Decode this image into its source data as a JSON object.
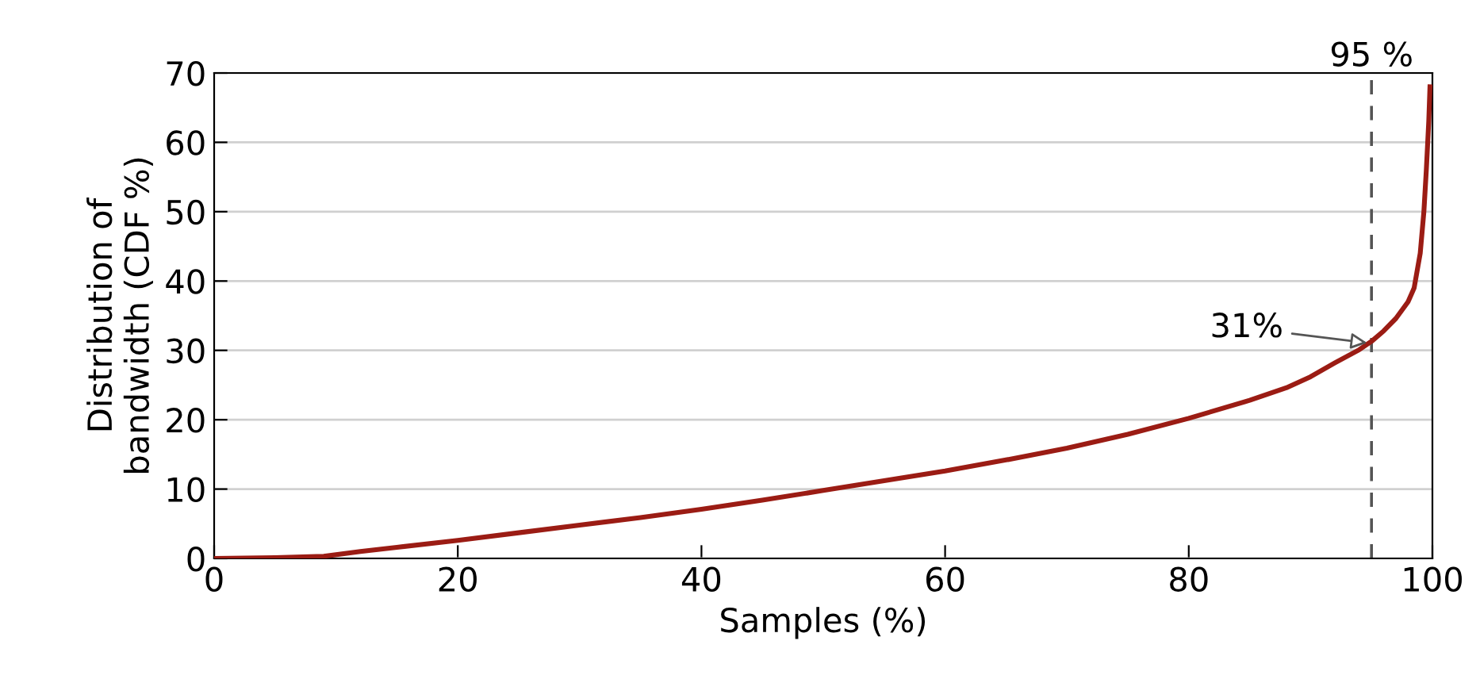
{
  "chart_data": {
    "type": "line",
    "xlabel": "Samples (%)",
    "ylabel": "Distribution of\nbandwidth (CDF %)",
    "xlim": [
      0,
      100
    ],
    "ylim": [
      0,
      70
    ],
    "xticks": [
      0,
      20,
      40,
      60,
      80,
      100
    ],
    "yticks": [
      0,
      10,
      20,
      30,
      40,
      50,
      60,
      70
    ],
    "grid": "y",
    "marker": "none",
    "line_style": "solid",
    "x": [
      0,
      5,
      9,
      12,
      15,
      20,
      25,
      30,
      35,
      40,
      45,
      50,
      55,
      60,
      65,
      70,
      75,
      80,
      85,
      88,
      90,
      92,
      94,
      95,
      96,
      97,
      98,
      98.5,
      99,
      99.3,
      99.5,
      99.7,
      99.8
    ],
    "series": [
      {
        "color": "#9b1c14",
        "values": [
          0,
          0.1,
          0.3,
          1,
          1.6,
          2.6,
          3.7,
          4.8,
          5.9,
          7.1,
          8.4,
          9.8,
          11.2,
          12.6,
          14.2,
          15.9,
          17.9,
          20.2,
          22.8,
          24.6,
          26.2,
          28.2,
          30.1,
          31.3,
          32.8,
          34.6,
          37,
          39,
          44,
          50,
          56,
          63,
          68
        ]
      }
    ],
    "ref_lines": [
      {
        "axis": "x",
        "value": 95,
        "label": "95 %",
        "color": "#555555",
        "line_style": "dashed"
      }
    ],
    "annotations": [
      {
        "text": "31%",
        "x": 95,
        "y": 31
      }
    ]
  }
}
